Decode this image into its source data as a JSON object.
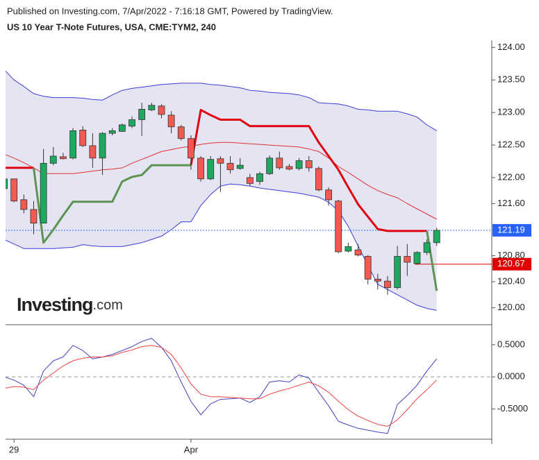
{
  "header": {
    "published": "Published on Investing.com, 7/Apr/2022 - 7:16:18 GMT, Powered by TradingView."
  },
  "logo": {
    "bold": "Investing",
    "rest": ".com"
  },
  "chart_data": [
    {
      "type": "candlestick",
      "title": "US 10 Year T-Note Futures, USA, CME:TYM2, 240",
      "xlim": [
        0.14,
        49.6
      ],
      "ylim": [
        119.74,
        124.11
      ],
      "yticks": [
        {
          "value": 124,
          "label": "124.00"
        },
        {
          "value": 123.5,
          "label": "123.50"
        },
        {
          "value": 123,
          "label": "123.00"
        },
        {
          "value": 122.5,
          "label": "122.50"
        },
        {
          "value": 122,
          "label": "122.00"
        },
        {
          "value": 121.6,
          "label": "121.60"
        },
        {
          "value": 120.8,
          "label": "120.80"
        },
        {
          "value": 120.4,
          "label": "120.40"
        },
        {
          "value": 120,
          "label": "120.00"
        }
      ],
      "candles": {
        "up_color": "#1fa85f",
        "down_color": "#f05a50",
        "open": [
          121.83,
          121.98,
          121.66,
          121.51,
          121.3,
          122.22,
          122.32,
          122.3,
          122.73,
          122.49,
          122.3,
          122.68,
          122.71,
          122.79,
          122.89,
          123.04,
          123.1,
          122.96,
          122.78,
          122.6,
          122.3,
          121.98,
          122.29,
          122.22,
          122.14,
          122.0,
          121.94,
          122.06,
          122.3,
          122.17,
          122.14,
          122.26,
          122.14,
          121.81,
          121.64,
          120.87,
          120.89,
          120.79,
          120.44,
          120.41,
          120.31,
          120.79,
          120.68,
          120.85,
          121.0
        ],
        "high": [
          121.98,
          121.98,
          121.74,
          121.64,
          122.44,
          122.47,
          122.38,
          122.76,
          122.79,
          122.68,
          122.7,
          122.76,
          122.83,
          122.94,
          123.15,
          123.15,
          123.13,
          123.02,
          122.81,
          122.65,
          122.33,
          122.33,
          122.33,
          122.33,
          122.3,
          122.06,
          122.09,
          122.34,
          122.4,
          122.21,
          122.3,
          122.33,
          122.17,
          121.85,
          121.66,
          121.0,
          120.98,
          120.81,
          120.52,
          120.49,
          120.95,
          120.98,
          120.87,
          121.05,
          121.23
        ],
        "low": [
          121.83,
          121.62,
          121.45,
          121.13,
          121.3,
          122.19,
          122.28,
          122.28,
          122.47,
          122.15,
          122.04,
          122.65,
          122.7,
          122.76,
          122.64,
          123.02,
          122.91,
          122.68,
          122.57,
          122.12,
          121.94,
          121.96,
          121.78,
          122.06,
          122.12,
          121.87,
          121.89,
          122.04,
          122.12,
          122.11,
          122.11,
          122.09,
          121.79,
          121.57,
          120.84,
          120.85,
          120.79,
          120.36,
          120.28,
          120.2,
          120.28,
          120.49,
          120.66,
          120.81,
          120.95
        ],
        "close": [
          121.98,
          121.64,
          121.51,
          121.3,
          122.22,
          122.33,
          122.29,
          122.72,
          122.49,
          122.3,
          122.68,
          122.72,
          122.81,
          122.89,
          123.05,
          123.11,
          122.97,
          122.78,
          122.6,
          122.3,
          121.98,
          122.28,
          122.22,
          122.12,
          122.19,
          121.91,
          122.06,
          122.3,
          122.15,
          122.13,
          122.26,
          122.15,
          121.81,
          121.66,
          120.86,
          120.94,
          120.81,
          120.44,
          120.41,
          120.31,
          120.79,
          120.7,
          120.85,
          121.0,
          121.19
        ]
      },
      "bands": {
        "line_color": "#3b3bd6",
        "middle_color": "#e03030",
        "fill": "#e4e4f3",
        "upper": [
          123.66,
          123.5,
          123.4,
          123.29,
          123.25,
          123.23,
          123.23,
          123.23,
          123.22,
          123.2,
          123.19,
          123.27,
          123.34,
          123.37,
          123.39,
          123.41,
          123.43,
          123.44,
          123.45,
          123.45,
          123.45,
          123.43,
          123.42,
          123.4,
          123.38,
          123.34,
          123.33,
          123.31,
          123.3,
          123.29,
          123.27,
          123.23,
          123.15,
          123.14,
          123.13,
          123.1,
          123.05,
          123.04,
          123.02,
          123.02,
          123.02,
          122.98,
          122.93,
          122.81,
          122.72
        ],
        "middle": [
          122.36,
          122.3,
          122.23,
          122.15,
          122.06,
          122.06,
          122.06,
          122.06,
          122.08,
          122.1,
          122.12,
          122.13,
          122.15,
          122.22,
          122.28,
          122.34,
          122.4,
          122.43,
          122.46,
          122.48,
          122.51,
          122.53,
          122.54,
          122.54,
          122.53,
          122.52,
          122.51,
          122.5,
          122.49,
          122.48,
          122.47,
          122.44,
          122.4,
          122.3,
          122.17,
          122.08,
          121.98,
          121.88,
          121.8,
          121.74,
          121.69,
          121.6,
          121.52,
          121.44,
          121.36
        ],
        "lower": [
          121.05,
          120.98,
          120.91,
          120.91,
          120.91,
          120.91,
          120.92,
          120.93,
          120.97,
          120.95,
          120.94,
          120.94,
          120.94,
          120.97,
          121.0,
          121.05,
          121.1,
          121.2,
          121.32,
          121.32,
          121.57,
          121.74,
          121.87,
          121.9,
          121.89,
          121.87,
          121.84,
          121.82,
          121.8,
          121.78,
          121.76,
          121.73,
          121.7,
          121.62,
          121.49,
          121.25,
          120.95,
          120.65,
          120.36,
          120.28,
          120.2,
          120.12,
          120.04,
          119.99,
          119.96
        ]
      },
      "series": [
        {
          "color": "#e00010",
          "values": [
            122.15,
            122.15,
            122.15,
            122.15,
            null,
            null,
            null,
            null,
            null,
            null,
            null,
            null,
            null,
            null,
            null,
            null,
            null,
            null,
            null,
            122.19,
            123.04,
            122.96,
            122.89,
            122.89,
            122.89,
            122.79,
            122.79,
            122.79,
            122.79,
            122.79,
            122.79,
            122.79,
            122.54,
            122.33,
            122.12,
            121.85,
            121.59,
            121.4,
            121.21,
            121.18,
            121.18,
            121.18,
            121.18,
            121.18,
            null
          ]
        },
        {
          "color": "#5b9450",
          "values": [
            null,
            null,
            null,
            122.15,
            121.0,
            121.2,
            121.42,
            121.63,
            121.63,
            121.63,
            121.63,
            121.63,
            121.94,
            122.01,
            122.04,
            122.19,
            122.19,
            122.19,
            122.19,
            122.19,
            null,
            null,
            null,
            null,
            null,
            null,
            null,
            null,
            null,
            null,
            null,
            null,
            null,
            null,
            null,
            null,
            null,
            null,
            null,
            null,
            null,
            null,
            null,
            121.18,
            120.26
          ]
        }
      ],
      "price_lines": [
        {
          "value": 121.19,
          "color": "#2962ff",
          "dotted": true
        },
        {
          "value": 120.67,
          "color": "#e00000",
          "dotted": false
        }
      ]
    },
    {
      "type": "line",
      "xlim": [
        0.14,
        49.6
      ],
      "ylim": [
        -0.97,
        0.79
      ],
      "xticks": [
        {
          "value": 1,
          "label": "29"
        },
        {
          "value": 19,
          "label": "Apr"
        }
      ],
      "yticks": [
        {
          "value": 0.5,
          "label": "0.5000"
        },
        {
          "value": 0,
          "label": "0.0000"
        },
        {
          "value": -0.5,
          "label": "-0.5000"
        }
      ],
      "zero_line": 0,
      "series": [
        {
          "color": "#4040c0",
          "values": [
            0.0,
            -0.05,
            -0.13,
            -0.31,
            0.09,
            0.25,
            0.31,
            0.49,
            0.41,
            0.28,
            0.31,
            0.35,
            0.41,
            0.47,
            0.55,
            0.6,
            0.46,
            0.25,
            -0.08,
            -0.38,
            -0.59,
            -0.42,
            -0.35,
            -0.34,
            -0.33,
            -0.4,
            -0.31,
            -0.08,
            -0.06,
            -0.08,
            0.03,
            -0.02,
            -0.24,
            -0.45,
            -0.69,
            -0.75,
            -0.8,
            -0.83,
            -0.86,
            -0.88,
            -0.43,
            -0.29,
            -0.13,
            0.09,
            0.28
          ]
        },
        {
          "color": "#f04040",
          "values": [
            -0.18,
            -0.15,
            -0.16,
            -0.2,
            -0.05,
            0.06,
            0.17,
            0.25,
            0.29,
            0.31,
            0.31,
            0.33,
            0.38,
            0.42,
            0.47,
            0.49,
            0.46,
            0.35,
            0.14,
            -0.11,
            -0.27,
            -0.31,
            -0.31,
            -0.32,
            -0.33,
            -0.34,
            -0.34,
            -0.27,
            -0.22,
            -0.18,
            -0.13,
            -0.08,
            -0.14,
            -0.24,
            -0.38,
            -0.51,
            -0.61,
            -0.68,
            -0.74,
            -0.77,
            -0.67,
            -0.51,
            -0.34,
            -0.2,
            -0.05
          ]
        }
      ]
    }
  ]
}
